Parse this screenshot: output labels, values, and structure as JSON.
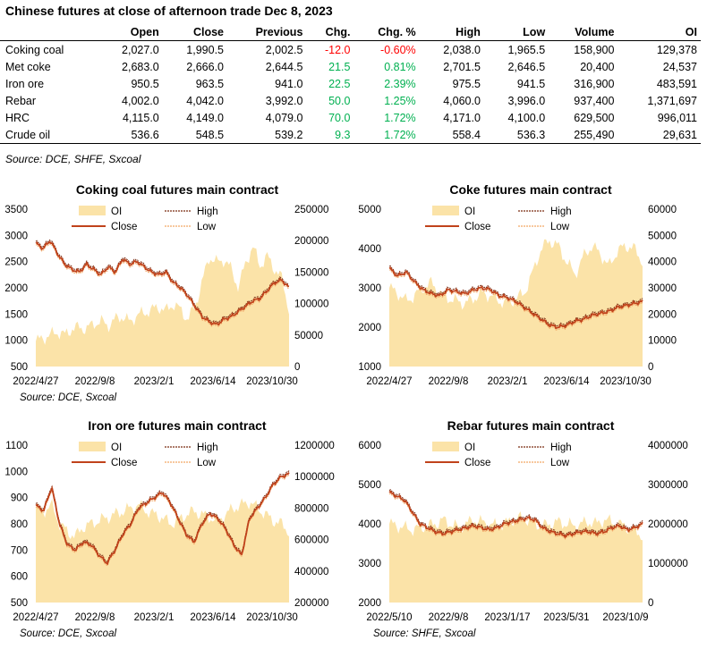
{
  "table": {
    "title": "Chinese futures at close of afternoon trade Dec 8, 2023",
    "headers": [
      "",
      "Open",
      "Close",
      "Previous",
      "Chg.",
      "Chg. %",
      "High",
      "Low",
      "Volume",
      "OI"
    ],
    "rows": [
      [
        "Coking coal",
        "2,027.0",
        "1,990.5",
        "2,002.5",
        "-12.0",
        "-0.60%",
        "2,038.0",
        "1,965.5",
        "158,900",
        "129,378"
      ],
      [
        "Met coke",
        "2,683.0",
        "2,666.0",
        "2,644.5",
        "21.5",
        "0.81%",
        "2,701.5",
        "2,646.5",
        "20,400",
        "24,537"
      ],
      [
        "Iron ore",
        "950.5",
        "963.5",
        "941.0",
        "22.5",
        "2.39%",
        "975.5",
        "941.5",
        "316,900",
        "483,591"
      ],
      [
        "Rebar",
        "4,002.0",
        "4,042.0",
        "3,992.0",
        "50.0",
        "1.25%",
        "4,060.0",
        "3,996.0",
        "937,400",
        "1,371,697"
      ],
      [
        "HRC",
        "4,115.0",
        "4,149.0",
        "4,079.0",
        "70.0",
        "1.72%",
        "4,171.0",
        "4,100.0",
        "629,500",
        "996,011"
      ],
      [
        "Crude oil",
        "536.6",
        "548.5",
        "539.2",
        "9.3",
        "1.72%",
        "558.4",
        "536.3",
        "255,490",
        "29,631"
      ]
    ],
    "source": "Source: DCE, SHFE, Sxcoal",
    "colors": {
      "negative": "#ff0000",
      "positive": "#00b050"
    }
  },
  "chart_data": [
    {
      "type": "line",
      "title": "Coking coal futures main contract",
      "source": "Source:  DCE, Sxcoal",
      "x_ticks": [
        "2022/4/27",
        "2022/9/8",
        "2023/2/1",
        "2023/6/14",
        "2023/10/30"
      ],
      "ylim": [
        500,
        3500
      ],
      "y_ticks": [
        "3500",
        "3000",
        "2500",
        "2000",
        "1500",
        "1000",
        "500"
      ],
      "y2lim": [
        0,
        250000
      ],
      "y2_ticks": [
        "250000",
        "200000",
        "150000",
        "100000",
        "50000",
        "0"
      ],
      "legend": [
        "OI",
        "High",
        "Close",
        "Low"
      ],
      "colors": {
        "oi": "#fbe3a8",
        "close": "#c0421b",
        "high": "#7b2c12",
        "low": "#f2a765"
      },
      "close": [
        2850,
        2750,
        2900,
        2650,
        2450,
        2350,
        2300,
        2450,
        2350,
        2250,
        2400,
        2300,
        2550,
        2450,
        2500,
        2400,
        2300,
        2250,
        2300,
        2100,
        2000,
        1850,
        1650,
        1450,
        1350,
        1300,
        1400,
        1450,
        1550,
        1650,
        1750,
        1800,
        1950,
        2100,
        2150,
        2000
      ],
      "oi": [
        40000,
        45000,
        50000,
        55000,
        50000,
        60000,
        62000,
        60000,
        68000,
        72000,
        65000,
        75000,
        80000,
        70000,
        82000,
        85000,
        90000,
        95000,
        88000,
        100000,
        90000,
        75000,
        95000,
        135000,
        175000,
        165000,
        170000,
        155000,
        125000,
        165000,
        190000,
        160000,
        175000,
        155000,
        140000,
        90000
      ]
    },
    {
      "type": "line",
      "title": "Coke futures main contract",
      "x_ticks": [
        "2022/4/27",
        "2022/9/8",
        "2023/2/1",
        "2023/6/14",
        "2023/10/30"
      ],
      "ylim": [
        1000,
        5000
      ],
      "y_ticks": [
        "5000",
        "4000",
        "3000",
        "2000",
        "1000"
      ],
      "y2lim": [
        0,
        60000
      ],
      "y2_ticks": [
        "60000",
        "50000",
        "40000",
        "30000",
        "20000",
        "10000",
        "0"
      ],
      "legend": [
        "OI",
        "High",
        "Close",
        "Low"
      ],
      "colors": {
        "oi": "#fbe3a8",
        "close": "#c0421b",
        "high": "#7b2c12",
        "low": "#f2a765"
      },
      "close": [
        3500,
        3300,
        3400,
        3150,
        2950,
        2850,
        2800,
        2950,
        2900,
        2850,
        2950,
        3000,
        2950,
        2800,
        2750,
        2650,
        2500,
        2350,
        2200,
        2050,
        2000,
        2050,
        2150,
        2200,
        2300,
        2350,
        2400,
        2500,
        2550,
        2600,
        2650
      ],
      "oi": [
        30000,
        28000,
        25000,
        27000,
        30000,
        32000,
        28000,
        26000,
        25000,
        24000,
        26000,
        28000,
        27000,
        25000,
        24000,
        26000,
        28000,
        36000,
        45000,
        48000,
        46000,
        40000,
        35000,
        42000,
        46000,
        43000,
        38000,
        44000,
        46000,
        45000,
        40000
      ]
    },
    {
      "type": "line",
      "title": "Iron ore futures main contract",
      "source": "Source:  DCE, Sxcoal",
      "x_ticks": [
        "2022/4/27",
        "2022/9/8",
        "2023/2/1",
        "2023/6/14",
        "2023/10/30"
      ],
      "ylim": [
        500,
        1100
      ],
      "y_ticks": [
        "1100",
        "1000",
        "900",
        "800",
        "700",
        "600",
        "500"
      ],
      "y2lim": [
        200000,
        1200000
      ],
      "y2_ticks": [
        "1200000",
        "1000000",
        "800000",
        "600000",
        "400000",
        "200000"
      ],
      "legend": [
        "OI",
        "High",
        "Close",
        "Low"
      ],
      "colors": {
        "oi": "#fbe3a8",
        "close": "#c0421b",
        "high": "#7b2c12",
        "low": "#f2a765"
      },
      "close": [
        870,
        850,
        940,
        800,
        720,
        700,
        730,
        720,
        680,
        650,
        700,
        760,
        800,
        860,
        880,
        900,
        920,
        880,
        820,
        760,
        730,
        800,
        840,
        820,
        780,
        720,
        680,
        820,
        860,
        900,
        950,
        980,
        990
      ],
      "oi": [
        800000,
        780000,
        820000,
        700000,
        650000,
        620000,
        680000,
        700000,
        720000,
        740000,
        760000,
        780000,
        800000,
        820000,
        780000,
        760000,
        740000,
        700000,
        720000,
        760000,
        780000,
        760000,
        740000,
        720000,
        760000,
        800000,
        820000,
        840000,
        800000,
        760000,
        720000,
        700000,
        650000
      ]
    },
    {
      "type": "line",
      "title": "Rebar futures main contract",
      "source": "Source:  SHFE, Sxcoal",
      "x_ticks": [
        "2022/5/10",
        "2022/9/8",
        "2023/1/17",
        "2023/5/31",
        "2023/10/9"
      ],
      "ylim": [
        2000,
        6000
      ],
      "y_ticks": [
        "6000",
        "5000",
        "4000",
        "3000",
        "2000"
      ],
      "y2lim": [
        0,
        4000000
      ],
      "y2_ticks": [
        "4000000",
        "3000000",
        "2000000",
        "1000000",
        "0"
      ],
      "legend": [
        "OI",
        "High",
        "Close",
        "Low"
      ],
      "colors": {
        "oi": "#fbe3a8",
        "close": "#c0421b",
        "high": "#7b2c12",
        "low": "#f2a765"
      },
      "close": [
        4800,
        4700,
        4600,
        4300,
        4000,
        3900,
        3800,
        3750,
        3800,
        3850,
        3900,
        3950,
        3900,
        3850,
        3900,
        4000,
        4050,
        4100,
        4150,
        4100,
        3900,
        3800,
        3750,
        3700,
        3750,
        3800,
        3800,
        3750,
        3800,
        3900,
        3950,
        3850,
        3900,
        4000
      ],
      "oi": [
        2000000,
        1950000,
        1900000,
        1850000,
        1900000,
        1950000,
        2000000,
        2100000,
        2000000,
        1900000,
        2000000,
        2100000,
        2050000,
        2000000,
        1950000,
        2000000,
        2100000,
        2150000,
        2100000,
        2000000,
        1950000,
        2000000,
        2050000,
        2000000,
        1950000,
        2000000,
        2050000,
        2000000,
        2100000,
        2050000,
        2000000,
        1900000,
        1800000,
        1700000
      ]
    }
  ]
}
